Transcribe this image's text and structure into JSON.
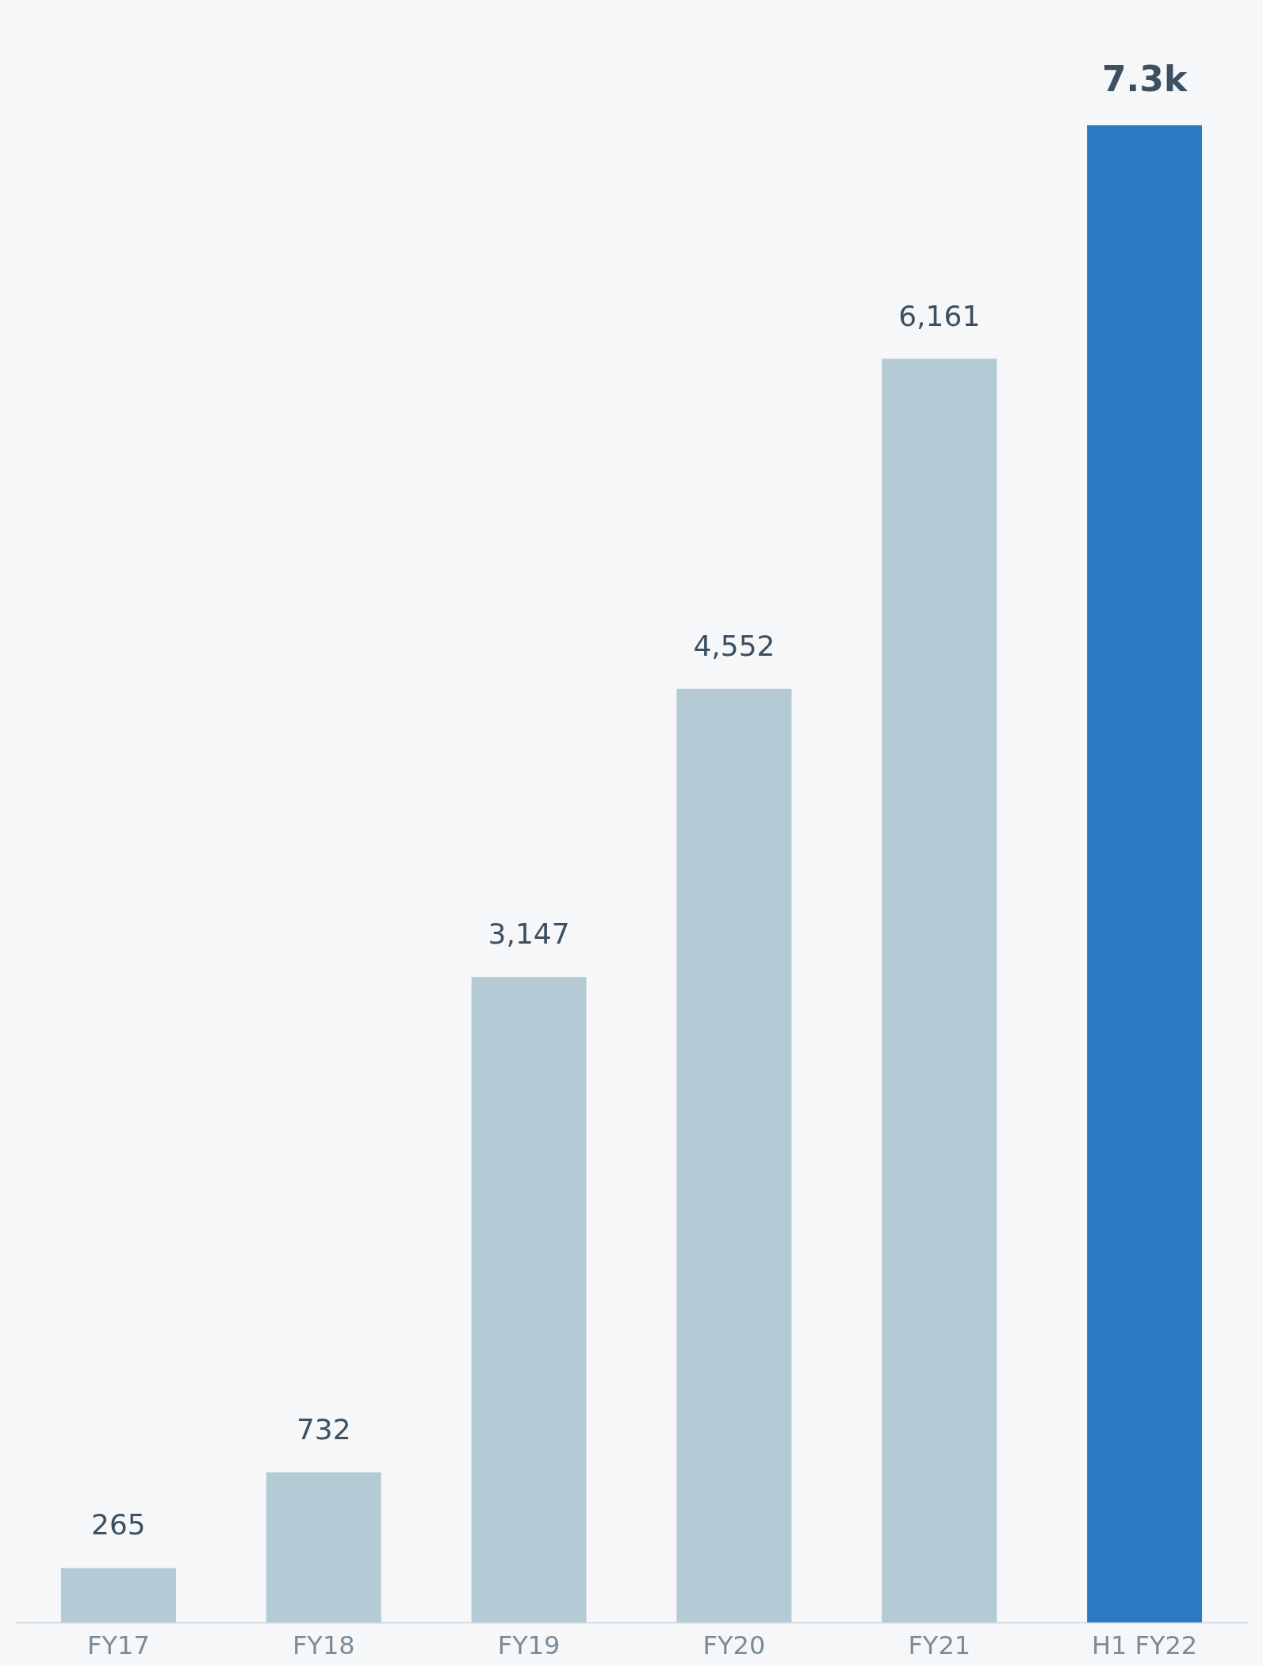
{
  "chart_data": {
    "type": "bar",
    "categories": [
      "FY17",
      "FY18",
      "FY19",
      "FY20",
      "FY21",
      "H1 FY22"
    ],
    "values": [
      265,
      732,
      3147,
      4552,
      6161,
      7300
    ],
    "value_labels": [
      "265",
      "732",
      "3,147",
      "4,552",
      "6,161",
      "7.3k"
    ],
    "colors": [
      "#b4cad5",
      "#b4cad5",
      "#b4cad5",
      "#b4cad5",
      "#b4cad5",
      "#2b7ac4"
    ],
    "grid": false
  }
}
